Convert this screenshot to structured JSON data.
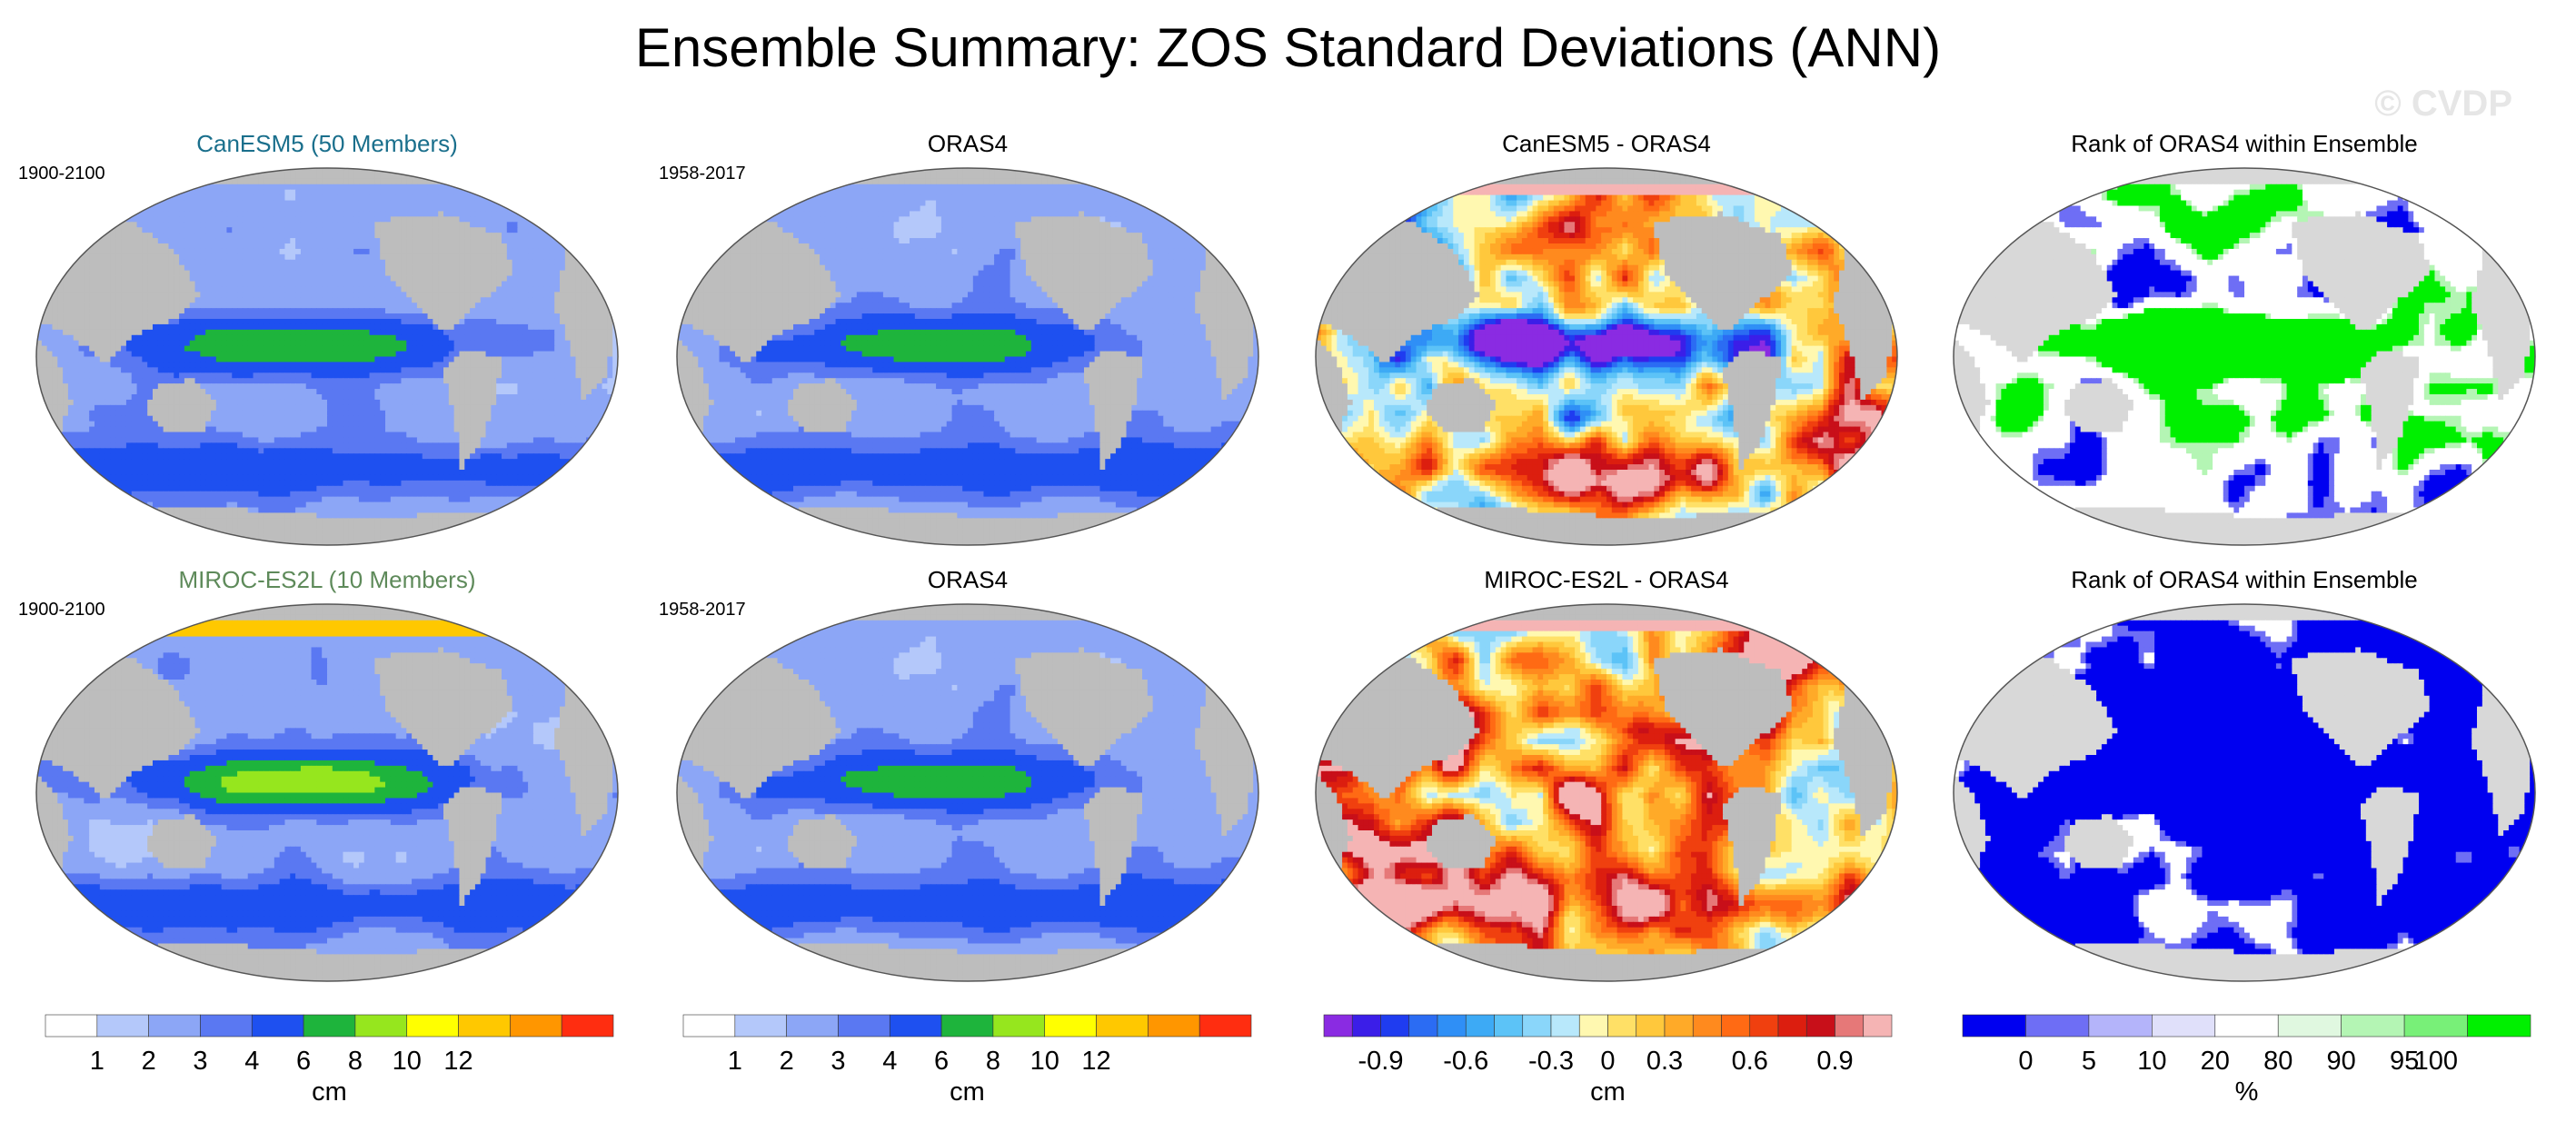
{
  "title": "Ensemble Summary: ZOS Standard Deviations (ANN)",
  "watermark": "© CVDP",
  "colors": {
    "land": "#bdbdbd",
    "land_light": "#d8d8d8",
    "ocean_base": "#a8bdf7",
    "model1_title": "#1a6f8c",
    "model2_title": "#5e8a5a"
  },
  "chart_data": [
    {
      "type": "heatmap",
      "name": "canesm5-std",
      "title": "CanESM5 (50 Members)",
      "years": "1900-2100",
      "units": "cm",
      "field_style": "std"
    },
    {
      "type": "heatmap",
      "name": "oras4-std-row1",
      "title": "ORAS4",
      "years": "1958-2017",
      "units": "cm",
      "field_style": "std"
    },
    {
      "type": "heatmap",
      "name": "canesm5-minus-oras4",
      "title": "CanESM5 - ORAS4",
      "years": "",
      "units": "cm",
      "field_style": "diff"
    },
    {
      "type": "heatmap",
      "name": "rank-row1",
      "title": "Rank of ORAS4 within Ensemble",
      "years": "",
      "units": "%",
      "field_style": "rank"
    },
    {
      "type": "heatmap",
      "name": "miroc-std",
      "title": "MIROC-ES2L (10 Members)",
      "years": "1900-2100",
      "units": "cm",
      "field_style": "std_miroc"
    },
    {
      "type": "heatmap",
      "name": "oras4-std-row2",
      "title": "ORAS4",
      "years": "1958-2017",
      "units": "cm",
      "field_style": "std"
    },
    {
      "type": "heatmap",
      "name": "miroc-minus-oras4",
      "title": "MIROC-ES2L - ORAS4",
      "years": "",
      "units": "cm",
      "field_style": "diff2"
    },
    {
      "type": "heatmap",
      "name": "rank-row2",
      "title": "Rank of ORAS4 within Ensemble",
      "years": "",
      "units": "%",
      "field_style": "rank2"
    }
  ],
  "colorbars": [
    {
      "name": "std-colorbar-1",
      "units": "cm",
      "colors": [
        "#ffffff",
        "#b4c8fa",
        "#8ca6f6",
        "#5a78f2",
        "#1e50f0",
        "#1eb43c",
        "#96e61e",
        "#ffff00",
        "#ffc800",
        "#ff9600",
        "#ff2d10"
      ],
      "labels": [
        "1",
        "2",
        "3",
        "4",
        "6",
        "8",
        "10",
        "12"
      ]
    },
    {
      "name": "std-colorbar-2",
      "units": "cm",
      "colors": [
        "#ffffff",
        "#b4c8fa",
        "#8ca6f6",
        "#5a78f2",
        "#1e50f0",
        "#1eb43c",
        "#96e61e",
        "#ffff00",
        "#ffc800",
        "#ff9600",
        "#ff2d10"
      ],
      "labels": [
        "1",
        "2",
        "3",
        "4",
        "6",
        "8",
        "10",
        "12"
      ]
    },
    {
      "name": "diff-colorbar",
      "units": "cm",
      "colors": [
        "#8a2be2",
        "#3b1ee8",
        "#1f3cf0",
        "#2b6cf3",
        "#2f8ff6",
        "#3daaf5",
        "#5cc3f7",
        "#8ad6fa",
        "#b8e8fb",
        "#fff8b0",
        "#ffe066",
        "#ffc83c",
        "#ffaa28",
        "#ff8a1e",
        "#ff6a14",
        "#f0400f",
        "#dc1e0f",
        "#c80f19",
        "#e67878",
        "#f5b4b4"
      ],
      "labels": [
        "-0.9",
        "-0.6",
        "-0.3",
        "0",
        "0.3",
        "0.6",
        "0.9"
      ]
    },
    {
      "name": "rank-colorbar",
      "units": "%",
      "colors": [
        "#0000f0",
        "#6e6ef5",
        "#b4b4fa",
        "#e0e0fa",
        "#ffffff",
        "#e0f8e0",
        "#b4f5b4",
        "#78f078",
        "#00f000"
      ],
      "labels": [
        "0",
        "5",
        "10",
        "20",
        "80",
        "90",
        "95",
        "100"
      ]
    }
  ]
}
